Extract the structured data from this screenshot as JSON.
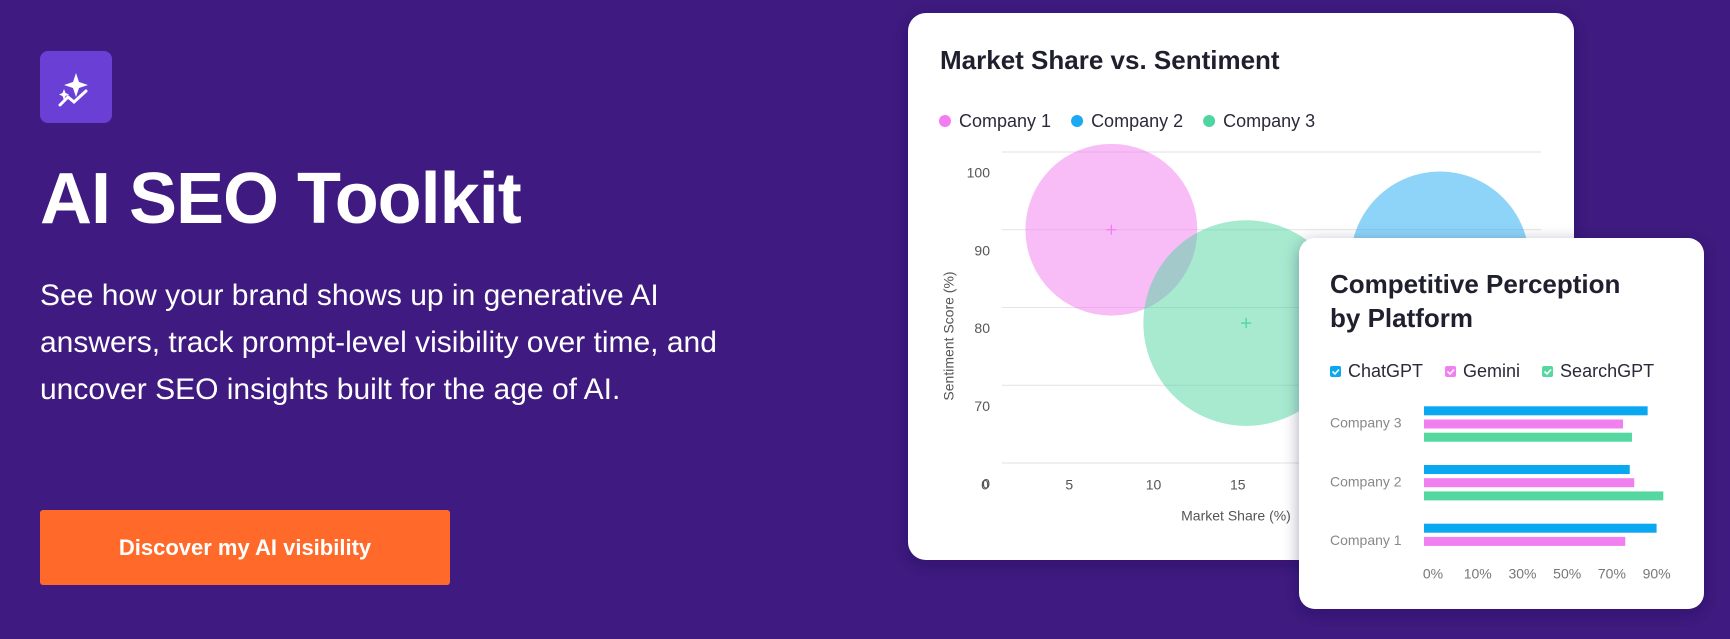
{
  "header": {
    "title": "AI SEO Toolkit",
    "description": "See how your brand shows up in generative AI answers, track prompt-level visibility over time, and uncover SEO insights built for the age of AI.",
    "button": "Discover my AI visibility"
  },
  "chart_data": [
    {
      "type": "bubble",
      "title": "Market Share vs. Sentiment",
      "x_label": "Market Share (%)",
      "y_label": "Sentiment Score (%)",
      "xlim": [
        0,
        33
      ],
      "xticks": [
        0,
        5,
        10,
        15
      ],
      "ylim": [
        0,
        100
      ],
      "yticks": [
        0,
        70,
        80,
        90,
        100
      ],
      "even_ticks_y": true,
      "grid": true,
      "series": [
        {
          "name": "Company 1",
          "color": "#f27cf0",
          "x": [
            7.5
          ],
          "values": [
            90
          ],
          "sizes": [
            5.1
          ]
        },
        {
          "name": "Company 2",
          "color": "#1da9f1",
          "x": [
            27
          ],
          "values": [
            86
          ],
          "sizes": [
            5.3
          ]
        },
        {
          "name": "Company 3",
          "color": "#4fd6a0",
          "x": [
            15.5
          ],
          "values": [
            78
          ],
          "sizes": [
            6.1
          ]
        }
      ]
    },
    {
      "type": "hbar",
      "title": "Competitive Perception by Platform",
      "categories": [
        "Company 3",
        "Company 2",
        "Company 1"
      ],
      "xlim": [
        0,
        100
      ],
      "xticks": [
        {
          "value": 0,
          "label": "0%"
        },
        {
          "value": 10,
          "label": "10%"
        },
        {
          "value": 30,
          "label": "30%"
        },
        {
          "value": 50,
          "label": "50%"
        },
        {
          "value": 70,
          "label": "70%"
        },
        {
          "value": 90,
          "label": "90%"
        }
      ],
      "even_ticks_x": true,
      "series": [
        {
          "name": "ChatGPT",
          "color": "#0aa8f0",
          "values": [
            90,
            82,
            94
          ]
        },
        {
          "name": "Gemini",
          "color": "#f27ff0",
          "values": [
            79,
            84,
            80
          ]
        },
        {
          "name": "SearchGPT",
          "color": "#55d8a0",
          "values": [
            83,
            97,
            null
          ]
        }
      ]
    }
  ]
}
